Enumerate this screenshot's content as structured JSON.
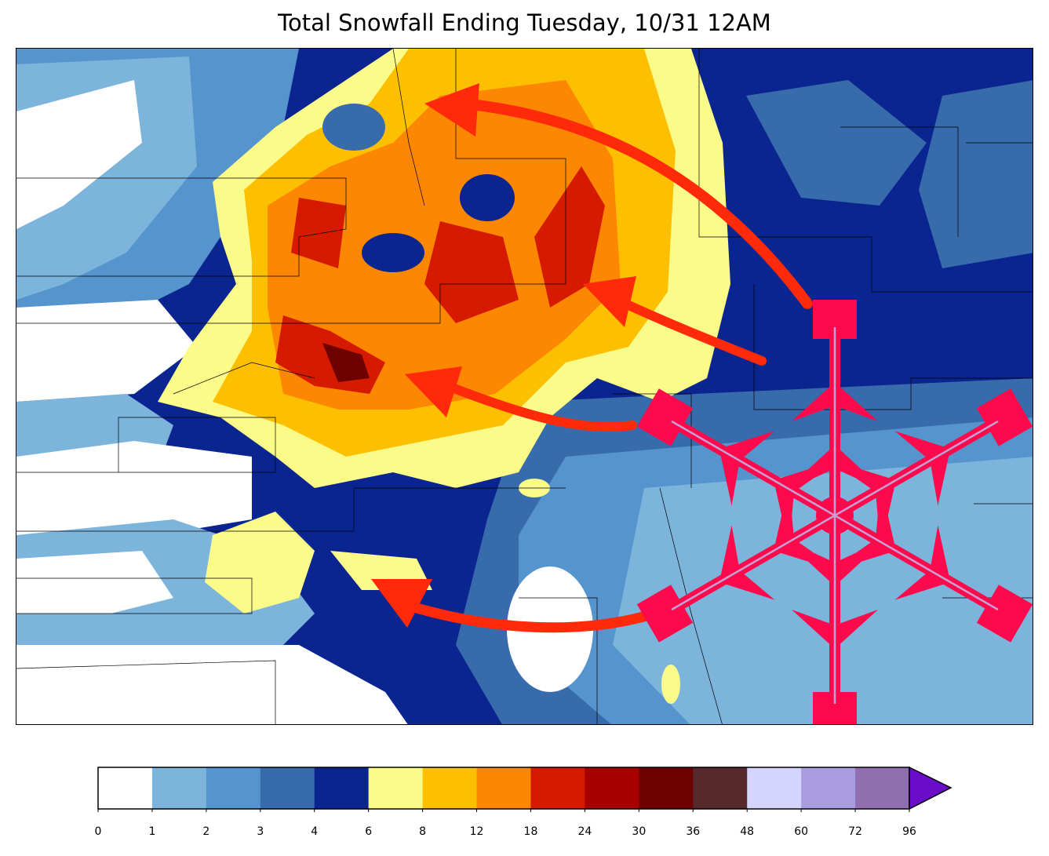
{
  "title": "Total Snowfall Ending Tuesday, 10/31 12AM",
  "colorbar": {
    "ticks": [
      "0",
      "1",
      "2",
      "3",
      "4",
      "6",
      "8",
      "12",
      "18",
      "24",
      "30",
      "36",
      "48",
      "60",
      "72",
      "96"
    ],
    "colors": [
      "#ffffff",
      "#7cb4dc",
      "#5594cc",
      "#376bab",
      "#0b2590",
      "#fbfb8a",
      "#fdc000",
      "#fd8700",
      "#d61a00",
      "#a80000",
      "#6e0000",
      "#56292a",
      "#d4d4fc",
      "#aa9ddf",
      "#8f6fb0"
    ],
    "extend_color": "#6a0dc9"
  },
  "map": {
    "snowflake_color": "#fc0a4c",
    "arrow_color": "#ff2a0a",
    "snowflake_icon": "snowflake-icon",
    "arrow_icon": "arrow-icon"
  }
}
